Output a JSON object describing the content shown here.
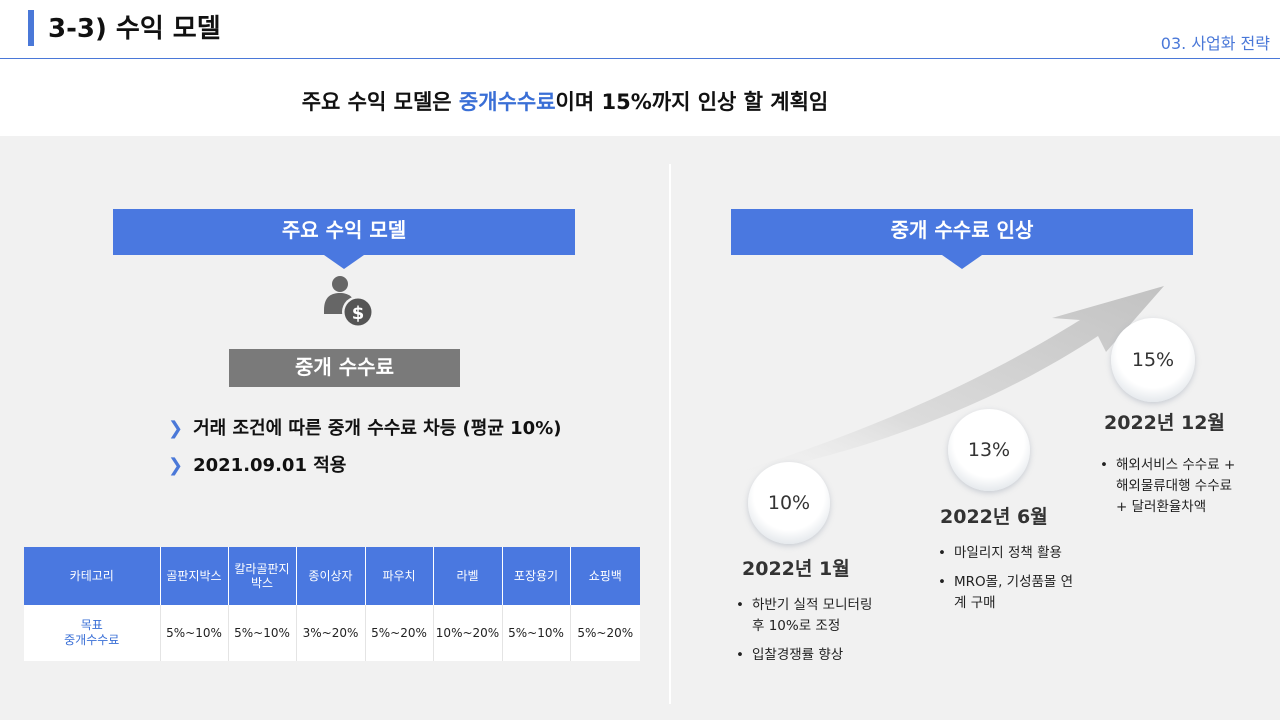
{
  "header": {
    "title": "3-3) 수익 모델",
    "section": "03. 사업화 전략"
  },
  "headline": {
    "prefix": "주요 수익 모델은 ",
    "highlight": "중개수수료",
    "suffix": "이며 15%까지 인상 할 계획임"
  },
  "left": {
    "box_title": "주요 수익 모델",
    "icon": "person-dollar-icon",
    "sub_title": "중개 수수료",
    "bullets": [
      "거래 조건에 따른 중개 수수료 차등 (평균 10%)",
      "2021.09.01 적용"
    ],
    "table": {
      "headers": [
        "카테고리",
        "골판지박스",
        "칼라골판지\n박스",
        "종이상자",
        "파우치",
        "라벨",
        "포장용기",
        "쇼핑백"
      ],
      "row_label": "목표\n중개수수료",
      "values": [
        "5%~10%",
        "5%~10%",
        "3%~20%",
        "5%~20%",
        "10%~20%",
        "5%~10%",
        "5%~20%"
      ]
    }
  },
  "right": {
    "box_title": "중개 수수료 인상",
    "milestones": [
      {
        "rate": "10%",
        "date": "2022년 1월",
        "notes": [
          "하반기 실적 모니터링\n후 10%로 조정",
          "입찰경쟁률 향상"
        ]
      },
      {
        "rate": "13%",
        "date": "2022년 6월",
        "notes": [
          "마일리지 정책 활용",
          "MRO몰, 기성품몰 연\n계 구매"
        ]
      },
      {
        "rate": "15%",
        "date": "2022년 12월",
        "notes": [
          "해외서비스 수수료 +\n해외물류대행 수수료\n+ 달러환율차액"
        ]
      }
    ]
  },
  "colors": {
    "accent": "#4a78e0",
    "highlight": "#3a6fd6",
    "gray_box": "#7a7a7a"
  }
}
